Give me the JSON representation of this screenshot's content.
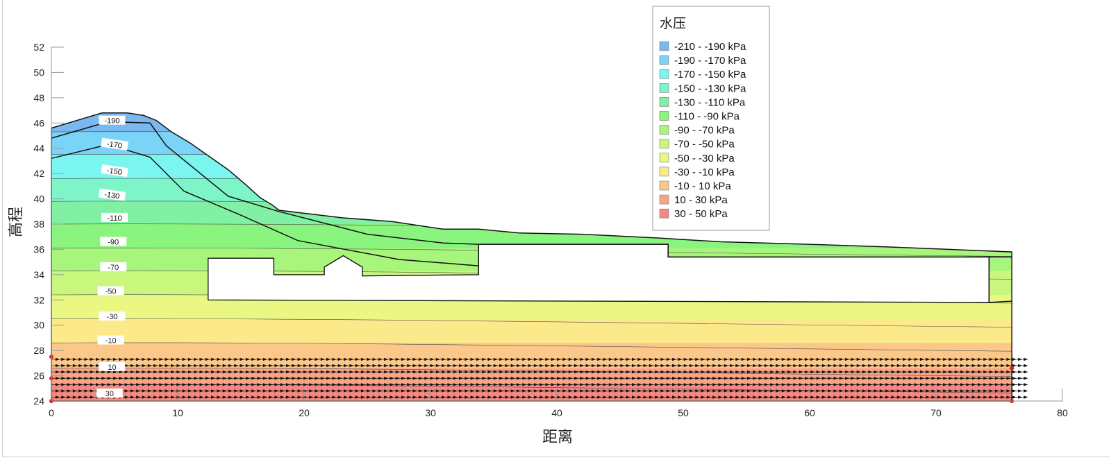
{
  "chart_data": {
    "type": "area",
    "xlabel": "距离",
    "ylabel": "高程",
    "xlim": [
      0,
      80
    ],
    "ylim": [
      24,
      52
    ],
    "x_ticks": [
      0,
      10,
      20,
      30,
      40,
      50,
      60,
      70,
      80
    ],
    "y_ticks": [
      24,
      26,
      28,
      30,
      32,
      34,
      36,
      38,
      40,
      42,
      44,
      46,
      48,
      50,
      52
    ],
    "legend": {
      "title": "水压",
      "position": "top-right",
      "items": [
        {
          "label": "-210 - -190 kPa",
          "color": "#7ab8f0"
        },
        {
          "label": "-190 - -170 kPa",
          "color": "#7ad4f7"
        },
        {
          "label": "-170 - -150 kPa",
          "color": "#7af5ef"
        },
        {
          "label": "-150 - -130 kPa",
          "color": "#7df5c8"
        },
        {
          "label": "-130 - -110 kPa",
          "color": "#82f0a4"
        },
        {
          "label": "-110 - -90 kPa",
          "color": "#8af57e"
        },
        {
          "label": "-90 - -70 kPa",
          "color": "#a8f57c"
        },
        {
          "label": "-70 - -50 kPa",
          "color": "#c9f77e"
        },
        {
          "label": "-50 - -30 kPa",
          "color": "#eaf883"
        },
        {
          "label": "-30 - -10 kPa",
          "color": "#fbe98a"
        },
        {
          "label": "-10 - 10 kPa",
          "color": "#fbc88a"
        },
        {
          "label": "10 - 30 kPa",
          "color": "#f9a585"
        },
        {
          "label": "30 - 50 kPa",
          "color": "#f58880"
        }
      ]
    },
    "contour_bands": [
      {
        "lower_elevation": 45.3,
        "upper_elevation": 52.0,
        "color": "#7ab8f0"
      },
      {
        "lower_elevation": 43.5,
        "upper_elevation": 45.3,
        "color": "#7ad4f7"
      },
      {
        "lower_elevation": 41.6,
        "upper_elevation": 43.5,
        "color": "#7af5ef"
      },
      {
        "lower_elevation": 39.8,
        "upper_elevation": 41.6,
        "color": "#7df5c8"
      },
      {
        "lower_elevation": 38.0,
        "upper_elevation": 39.8,
        "color": "#82f0a4"
      },
      {
        "lower_elevation": 36.1,
        "upper_elevation": 38.0,
        "color": "#8af57e"
      },
      {
        "lower_elevation": 34.3,
        "upper_elevation": 36.1,
        "color": "#a8f57c"
      },
      {
        "lower_elevation": 32.4,
        "upper_elevation": 34.3,
        "color": "#c9f77e"
      },
      {
        "lower_elevation": 30.5,
        "upper_elevation": 32.4,
        "color": "#eaf883"
      },
      {
        "lower_elevation": 28.6,
        "upper_elevation": 30.5,
        "color": "#fbe98a"
      },
      {
        "lower_elevation": 26.6,
        "upper_elevation": 28.6,
        "color": "#fbc88a"
      },
      {
        "lower_elevation": 25.3,
        "upper_elevation": 26.6,
        "color": "#f9a585"
      },
      {
        "lower_elevation": 24.0,
        "upper_elevation": 25.3,
        "color": "#f58880"
      }
    ],
    "contour_labels": [
      {
        "text": "-190",
        "x": 4.8,
        "y": 46.2
      },
      {
        "text": "-170",
        "x": 5.0,
        "y": 44.3
      },
      {
        "text": "-150",
        "x": 5.0,
        "y": 42.2
      },
      {
        "text": "-130",
        "x": 4.8,
        "y": 40.3
      },
      {
        "text": "-110",
        "x": 5.0,
        "y": 38.5
      },
      {
        "text": "-90",
        "x": 4.9,
        "y": 36.6
      },
      {
        "text": "-70",
        "x": 4.9,
        "y": 34.6
      },
      {
        "text": "-50",
        "x": 4.7,
        "y": 32.7
      },
      {
        "text": "-30",
        "x": 4.8,
        "y": 30.7
      },
      {
        "text": "-10",
        "x": 4.7,
        "y": 28.8
      },
      {
        "text": "10",
        "x": 4.8,
        "y": 26.7
      },
      {
        "text": "30",
        "x": 4.6,
        "y": 24.6
      }
    ],
    "slope_surface": [
      [
        0,
        45.6
      ],
      [
        4,
        46.8
      ],
      [
        6,
        46.8
      ],
      [
        7.3,
        46.6
      ],
      [
        8.3,
        46.2
      ],
      [
        9.5,
        45.3
      ],
      [
        11,
        44.4
      ],
      [
        14,
        42.3
      ],
      [
        15.4,
        41.1
      ],
      [
        16.5,
        40.1
      ],
      [
        17.5,
        39.5
      ],
      [
        18,
        39.1
      ],
      [
        23,
        38.5
      ],
      [
        27,
        38.2
      ],
      [
        31,
        37.6
      ],
      [
        33.8,
        37.6
      ],
      [
        37,
        37.3
      ],
      [
        42,
        37.2
      ],
      [
        48,
        36.9
      ],
      [
        53,
        36.6
      ],
      [
        60,
        36.4
      ],
      [
        66,
        36.2
      ],
      [
        71,
        36.0
      ],
      [
        76,
        35.8
      ],
      [
        76,
        24
      ],
      [
        0,
        24
      ]
    ],
    "outer_boundary": [
      [
        0,
        45.6
      ],
      [
        4,
        46.8
      ],
      [
        6,
        46.8
      ],
      [
        7.3,
        46.6
      ],
      [
        8.3,
        46.2
      ],
      [
        9.5,
        45.3
      ],
      [
        11,
        44.4
      ],
      [
        14,
        42.3
      ],
      [
        15.4,
        41.1
      ],
      [
        16.5,
        40.1
      ],
      [
        17.5,
        39.5
      ],
      [
        18,
        39.1
      ],
      [
        23,
        38.5
      ],
      [
        27,
        38.2
      ],
      [
        31,
        37.6
      ],
      [
        33.8,
        37.6
      ],
      [
        37,
        37.3
      ],
      [
        42,
        37.2
      ],
      [
        48,
        36.9
      ],
      [
        53,
        36.6
      ],
      [
        60,
        36.4
      ],
      [
        66,
        36.2
      ],
      [
        71,
        36.0
      ],
      [
        76,
        35.8
      ],
      [
        76,
        24
      ],
      [
        0,
        24
      ],
      [
        0,
        45.6
      ]
    ],
    "material_lines": [
      [
        [
          0,
          44.8
        ],
        [
          4.5,
          46.1
        ],
        [
          7.8,
          46.0
        ],
        [
          9.1,
          44.2
        ],
        [
          14,
          40.2
        ],
        [
          18,
          39.0
        ],
        [
          25,
          37.2
        ],
        [
          31,
          36.5
        ],
        [
          33.8,
          36.4
        ]
      ],
      [
        [
          0,
          43.2
        ],
        [
          4.5,
          44.3
        ],
        [
          7.8,
          43.3
        ],
        [
          10.5,
          40.6
        ],
        [
          15,
          38.7
        ],
        [
          19.5,
          36.7
        ],
        [
          27.5,
          35.2
        ],
        [
          33.8,
          34.7
        ]
      ],
      [
        [
          33.8,
          36.4
        ],
        [
          33.8,
          34.0
        ]
      ],
      [
        [
          33.8,
          36.4
        ],
        [
          48.8,
          36.4
        ],
        [
          48.8,
          35.4
        ],
        [
          76,
          35.4
        ]
      ],
      [
        [
          74.2,
          35.4
        ],
        [
          74.2,
          31.8
        ]
      ],
      [
        [
          74.2,
          31.8
        ],
        [
          76,
          31.9
        ]
      ]
    ],
    "cavity": [
      [
        12.4,
        35.3
      ],
      [
        17.6,
        35.3
      ],
      [
        17.6,
        34.0
      ],
      [
        21.6,
        34.0
      ],
      [
        21.6,
        34.6
      ],
      [
        23.1,
        35.5
      ],
      [
        24.6,
        34.6
      ],
      [
        24.6,
        33.9
      ],
      [
        33.8,
        34.0
      ],
      [
        33.8,
        36.4
      ],
      [
        48.8,
        36.4
      ],
      [
        48.8,
        35.4
      ],
      [
        74.2,
        35.4
      ],
      [
        74.2,
        31.8
      ],
      [
        12.4,
        32.0
      ],
      [
        12.4,
        35.3
      ]
    ],
    "flow_vector_rows": [
      27.3,
      26.8,
      26.3,
      25.8,
      25.3,
      24.8,
      24.3
    ],
    "flow_vector_x_range": [
      0,
      77.2
    ],
    "boundary_nodes": [
      [
        0,
        27.5
      ],
      [
        0,
        25.8
      ],
      [
        0,
        24
      ],
      [
        76,
        26.6
      ],
      [
        76,
        24
      ]
    ]
  }
}
